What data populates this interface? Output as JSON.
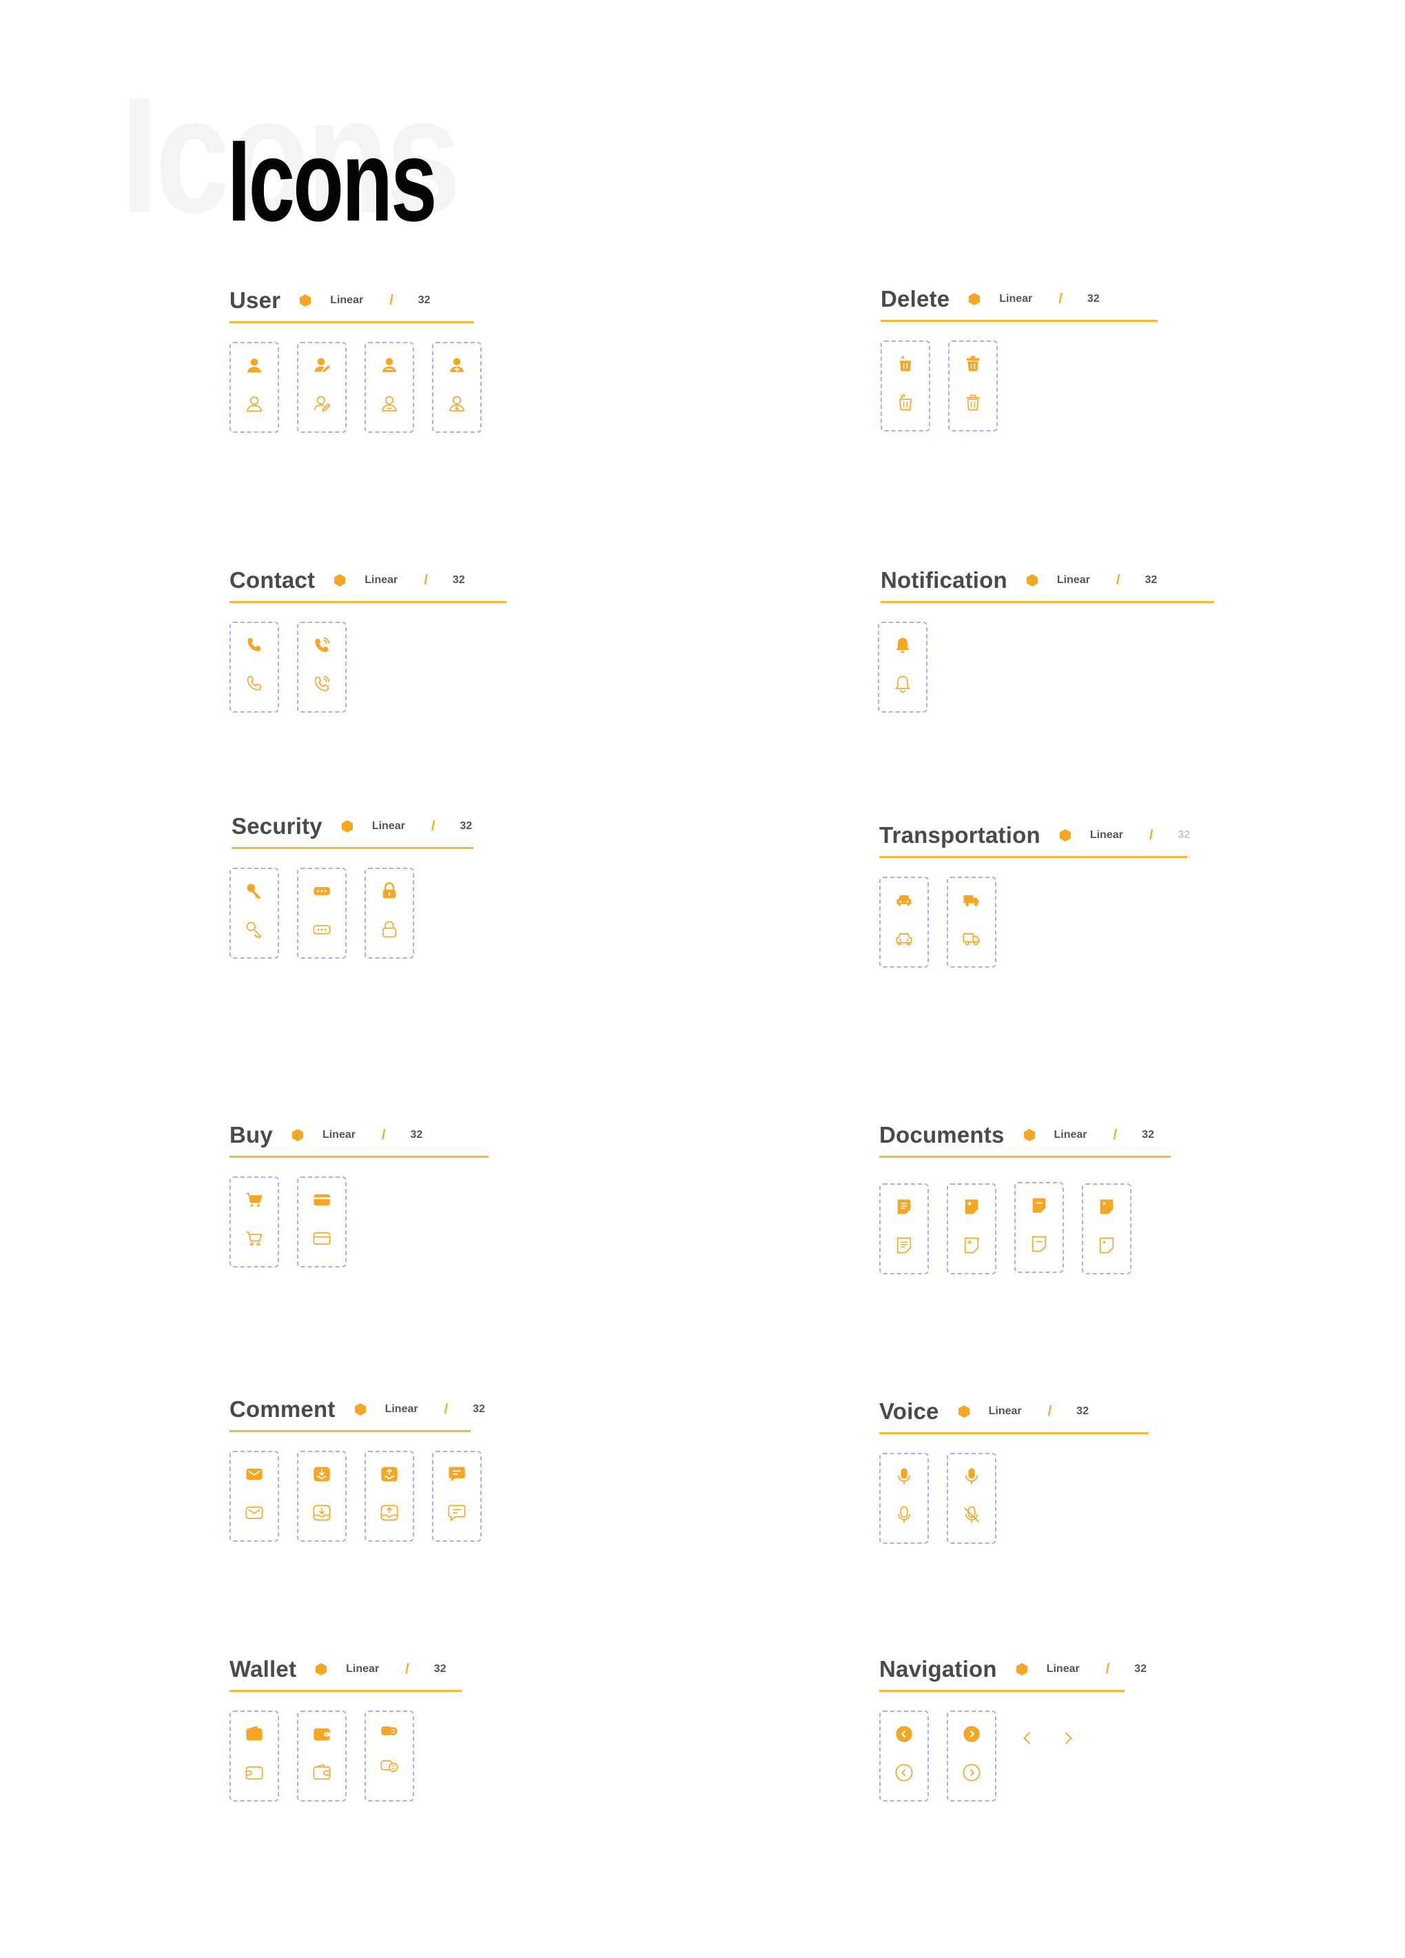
{
  "title": "Icons",
  "ghost_title": "Icons",
  "colors": {
    "accent": "#F5A623",
    "rule": "#F5B73C",
    "tile_border": "#C7A0F3",
    "heading": "#4A4A4A"
  },
  "sections": [
    {
      "id": "user",
      "title": "User",
      "style": "Linear",
      "slash": "/",
      "size": "32",
      "icons": [
        "user-filled-icon/user-outline-icon",
        "user-edit-filled-icon/user-edit-outline-icon",
        "user-remove-filled-icon/user-remove-outline-icon",
        "user-add-filled-icon/user-add-outline-icon"
      ]
    },
    {
      "id": "delete",
      "title": "Delete",
      "style": "Linear",
      "slash": "/",
      "size": "32",
      "icons": [
        "trash-open-filled-icon/trash-open-outline-icon",
        "trash-filled-icon/trash-outline-icon"
      ]
    },
    {
      "id": "contact",
      "title": "Contact",
      "style": "Linear",
      "slash": "/",
      "size": "32",
      "icons": [
        "phone-filled-icon/phone-outline-icon",
        "phone-call-filled-icon/phone-call-outline-icon"
      ]
    },
    {
      "id": "notification",
      "title": "Notification",
      "style": "Linear",
      "slash": "/",
      "size": "32",
      "icons": [
        "bell-filled-icon/bell-outline-icon"
      ]
    },
    {
      "id": "security",
      "title": "Security",
      "style": "Linear",
      "slash": "/",
      "size": "32",
      "icons": [
        "key-filled-icon/key-outline-icon",
        "password-filled-icon/password-outline-icon",
        "lock-filled-icon/lock-outline-icon"
      ]
    },
    {
      "id": "transportation",
      "title": "Transportation",
      "style": "Linear",
      "slash": "/",
      "size": "32",
      "icons": [
        "car-filled-icon/car-outline-icon",
        "truck-filled-icon/truck-outline-icon"
      ]
    },
    {
      "id": "buy",
      "title": "Buy",
      "style": "Linear",
      "slash": "/",
      "size": "32",
      "icons": [
        "cart-filled-icon/cart-outline-icon",
        "card-filled-icon/card-outline-icon"
      ]
    },
    {
      "id": "documents",
      "title": "Documents",
      "style": "Linear",
      "slash": "/",
      "size": "32",
      "icons": [
        "document-filled-icon/document-outline-icon",
        "note-add-filled-icon/note-add-outline-icon",
        "note-filled-icon/note-outline-icon",
        "sticky-note-filled-icon/sticky-note-outline-icon"
      ]
    },
    {
      "id": "comment",
      "title": "Comment",
      "style": "Linear",
      "slash": "/",
      "size": "32",
      "icons": [
        "mail-filled-icon/mail-outline-icon",
        "inbox-in-filled-icon/inbox-in-outline-icon",
        "inbox-out-filled-icon/inbox-out-outline-icon",
        "chat-filled-icon/chat-outline-icon"
      ]
    },
    {
      "id": "voice",
      "title": "Voice",
      "style": "Linear",
      "slash": "/",
      "size": "32",
      "icons": [
        "mic-filled-icon/mic-outline-icon",
        "mic-off-filled-icon/mic-off-outline-icon"
      ]
    },
    {
      "id": "wallet",
      "title": "Wallet",
      "style": "Linear",
      "slash": "/",
      "size": "32",
      "icons": [
        "wallet-filled-icon/wallet-outline-icon",
        "wallet-alt-filled-icon/wallet-alt-outline-icon",
        "exchange-filled-icon/exchange-outline-icon"
      ]
    },
    {
      "id": "navigation",
      "title": "Navigation",
      "style": "Linear",
      "slash": "/",
      "size": "32",
      "icons": [
        "arrow-left-circle-filled-icon/arrow-left-circle-outline-icon",
        "arrow-right-circle-filled-icon/arrow-right-circle-outline-icon",
        "chevron-left-icon",
        "chevron-right-icon"
      ]
    }
  ]
}
